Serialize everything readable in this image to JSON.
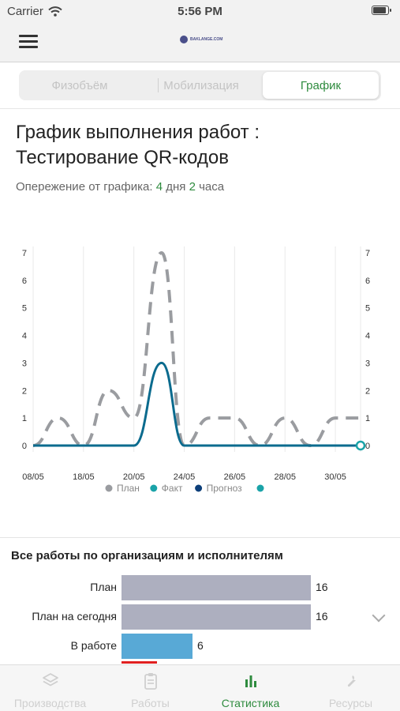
{
  "status_bar": {
    "carrier": "Carrier",
    "time": "5:56 PM",
    "battery_level": 0.95
  },
  "header": {
    "menu_icon": "hamburger-menu-icon",
    "logo_text": "BAKLANGE.COM"
  },
  "segments": [
    {
      "label": "Физобъём",
      "active": false
    },
    {
      "label": "Мобилизация",
      "active": false
    },
    {
      "label": "График",
      "active": true
    }
  ],
  "page": {
    "title": "График выполнения работ : Тестирование QR-кодов",
    "ahead_label": "Опережение от графика:",
    "days_value": "4",
    "days_unit": "дня",
    "hours_value": "2",
    "hours_unit": "часа"
  },
  "colors": {
    "accent": "#2e8b3e",
    "plan": "#9a9ca0",
    "fact": "#1aa3a8",
    "forecast": "#0b6b8e"
  },
  "chart_data": {
    "type": "line",
    "categories": [
      "08/05",
      "18/05",
      "20/05",
      "24/05",
      "26/05",
      "28/05",
      "30/05"
    ],
    "ylim": [
      0,
      7
    ],
    "y_ticks": [
      "0",
      "1",
      "2",
      "3",
      "4",
      "5",
      "6",
      "7"
    ],
    "grid": true,
    "legend_position": "bottom",
    "series": [
      {
        "name": "План",
        "style": "dashed",
        "x": [
          0,
          0.5,
          1,
          1.5,
          2,
          2.55,
          3,
          3.5,
          4,
          4.5,
          5,
          5.5,
          6,
          6.5
        ],
        "values": [
          0,
          1,
          0,
          2,
          1,
          7,
          0,
          1,
          1,
          0,
          1,
          0,
          1,
          1
        ]
      },
      {
        "name": "Факт",
        "x": [
          6.5
        ],
        "values": [
          0
        ]
      },
      {
        "name": "Прогноз",
        "x": [
          0,
          1,
          1.5,
          2,
          2.55,
          3,
          3.5,
          4,
          5,
          6,
          6.5
        ],
        "values": [
          0,
          0,
          0,
          0,
          3,
          0,
          0,
          0,
          0,
          0,
          0
        ]
      },
      {
        "name": "",
        "x": [],
        "values": []
      }
    ]
  },
  "works": {
    "title": "Все работы по организациям и исполнителям",
    "max": 16,
    "rows": [
      {
        "label": "План",
        "value": 16,
        "display": "16",
        "color": "#adafbf"
      },
      {
        "label": "План на сегодня",
        "value": 16,
        "display": "16",
        "color": "#adafbf"
      },
      {
        "label": "В работе",
        "value": 6,
        "display": "6",
        "color": "#58a9d6"
      }
    ]
  },
  "tabbar": [
    {
      "label": "Производства",
      "icon": "layers-icon",
      "active": false
    },
    {
      "label": "Работы",
      "icon": "clipboard-icon",
      "active": false
    },
    {
      "label": "Статистика",
      "icon": "bar-chart-icon",
      "active": true
    },
    {
      "label": "Ресурсы",
      "icon": "wrench-icon",
      "active": false
    }
  ]
}
